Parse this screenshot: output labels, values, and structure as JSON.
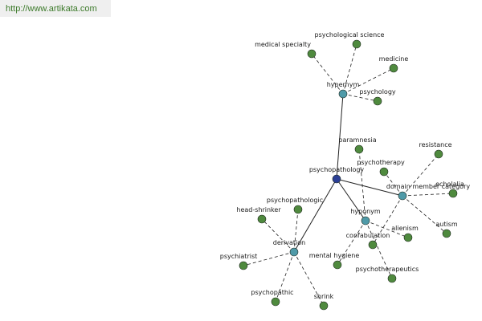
{
  "header": {
    "url": "http://www.artikata.com"
  },
  "graph": {
    "nodes": [
      {
        "id": "psychopathology",
        "label": "psychopathology",
        "kind": "center"
      },
      {
        "id": "hypernym",
        "label": "hypernym",
        "kind": "hub"
      },
      {
        "id": "domain",
        "label": "domain member category",
        "kind": "hub"
      },
      {
        "id": "hyponym",
        "label": "hyponym",
        "kind": "hub"
      },
      {
        "id": "derivation",
        "label": "derivation",
        "kind": "hub"
      },
      {
        "id": "paramnesia",
        "label": "paramnesia",
        "kind": "leaf"
      },
      {
        "id": "psychological-science",
        "label": "psychological science",
        "kind": "leaf"
      },
      {
        "id": "medical-specialty",
        "label": "medical specialty",
        "kind": "leaf"
      },
      {
        "id": "medicine",
        "label": "medicine",
        "kind": "leaf"
      },
      {
        "id": "psychology",
        "label": "psychology",
        "kind": "leaf"
      },
      {
        "id": "resistance",
        "label": "resistance",
        "kind": "leaf"
      },
      {
        "id": "psychotherapy",
        "label": "psychotherapy",
        "kind": "leaf"
      },
      {
        "id": "echolalia",
        "label": "echolalia",
        "kind": "leaf"
      },
      {
        "id": "autism",
        "label": "autism",
        "kind": "leaf"
      },
      {
        "id": "alienism",
        "label": "alienism",
        "kind": "leaf"
      },
      {
        "id": "confabulation",
        "label": "confabulation",
        "kind": "leaf"
      },
      {
        "id": "psychotherapeutics",
        "label": "psychotherapeutics",
        "kind": "leaf"
      },
      {
        "id": "mental-hygiene",
        "label": "mental hygiene",
        "kind": "leaf"
      },
      {
        "id": "psychopathologic",
        "label": "psychopathologic",
        "kind": "leaf"
      },
      {
        "id": "head-shrinker",
        "label": "head-shrinker",
        "kind": "leaf"
      },
      {
        "id": "psychiatrist",
        "label": "psychiatrist",
        "kind": "leaf"
      },
      {
        "id": "psychopathic",
        "label": "psychopathic",
        "kind": "leaf"
      },
      {
        "id": "shrink",
        "label": "shrink",
        "kind": "leaf"
      }
    ],
    "edges": [
      {
        "from": "psychopathology",
        "to": "hypernym",
        "style": "solid"
      },
      {
        "from": "psychopathology",
        "to": "domain",
        "style": "solid"
      },
      {
        "from": "psychopathology",
        "to": "hyponym",
        "style": "solid"
      },
      {
        "from": "psychopathology",
        "to": "derivation",
        "style": "solid"
      },
      {
        "from": "hypernym",
        "to": "psychological-science",
        "style": "dashed"
      },
      {
        "from": "hypernym",
        "to": "medical-specialty",
        "style": "dashed"
      },
      {
        "from": "hypernym",
        "to": "medicine",
        "style": "dashed"
      },
      {
        "from": "hypernym",
        "to": "psychology",
        "style": "dashed"
      },
      {
        "from": "domain",
        "to": "resistance",
        "style": "dashed"
      },
      {
        "from": "domain",
        "to": "psychotherapy",
        "style": "dashed"
      },
      {
        "from": "domain",
        "to": "echolalia",
        "style": "dashed"
      },
      {
        "from": "domain",
        "to": "autism",
        "style": "dashed"
      },
      {
        "from": "domain",
        "to": "confabulation",
        "style": "dashed"
      },
      {
        "from": "hyponym",
        "to": "paramnesia",
        "style": "dashed"
      },
      {
        "from": "hyponym",
        "to": "alienism",
        "style": "dashed"
      },
      {
        "from": "hyponym",
        "to": "psychotherapeutics",
        "style": "dashed"
      },
      {
        "from": "hyponym",
        "to": "mental-hygiene",
        "style": "dashed"
      },
      {
        "from": "derivation",
        "to": "psychopathologic",
        "style": "dashed"
      },
      {
        "from": "derivation",
        "to": "head-shrinker",
        "style": "dashed"
      },
      {
        "from": "derivation",
        "to": "psychiatrist",
        "style": "dashed"
      },
      {
        "from": "derivation",
        "to": "psychopathic",
        "style": "dashed"
      },
      {
        "from": "derivation",
        "to": "shrink",
        "style": "dashed"
      }
    ]
  },
  "colors": {
    "center": "#2b3f96",
    "hub": "#4f9aa8",
    "leaf": "#4f8a3e",
    "edge": "#222222"
  }
}
